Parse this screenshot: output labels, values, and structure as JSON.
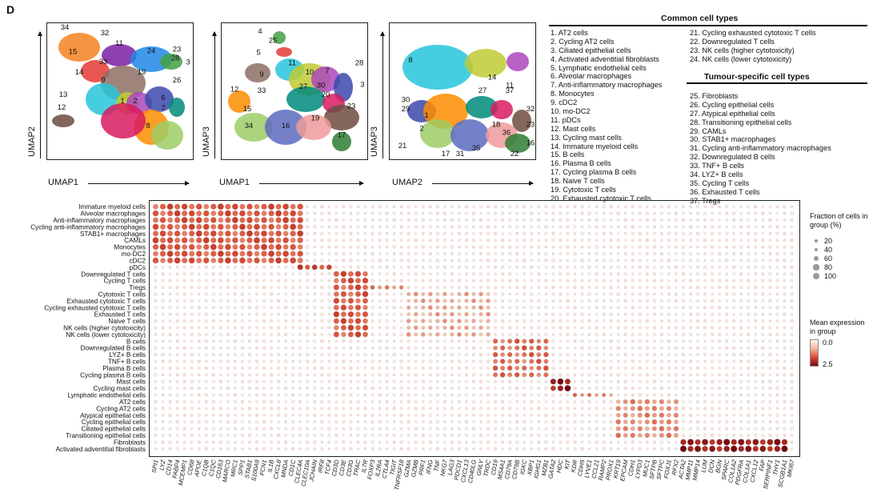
{
  "panel_label": "D",
  "umaps": [
    {
      "xlabel": "UMAP1",
      "ylabel": "UMAP2",
      "labels": [
        "34",
        "32",
        "15",
        "11",
        "33",
        "24",
        "23",
        "28",
        "3",
        "14",
        "19",
        "26",
        "9",
        "13",
        "12",
        "1",
        "2",
        "7",
        "6",
        "8"
      ]
    },
    {
      "xlabel": "UMAP1",
      "ylabel": "UMAP3",
      "labels": [
        "4",
        "25",
        "5",
        "9",
        "11",
        "10",
        "7",
        "28",
        "3",
        "12",
        "33",
        "27",
        "30",
        "20",
        "15",
        "34",
        "16",
        "19",
        "23",
        "17"
      ]
    },
    {
      "xlabel": "UMAP2",
      "ylabel": "UMAP3",
      "labels": [
        "8",
        "14",
        "11",
        "30",
        "29",
        "27",
        "37",
        "32",
        "1",
        "2",
        "23",
        "36",
        "21",
        "18",
        "16",
        "17",
        "31",
        "35",
        "22"
      ]
    }
  ],
  "legend": {
    "common_title": "Common cell types",
    "common_col1": [
      "1. AT2 cells",
      "2. Cycling AT2 cells",
      "3. Ciliated epithelial cells",
      "4. Activated adventitial fibroblasts",
      "5. Lymphatic endothelial cells",
      "6. Alveolar macrophages",
      "7. Anti-inflammatory macrophages",
      "8. Monocytes",
      "9. cDC2",
      "10. mo-DC2",
      "11. pDCs",
      "12. Mast cells",
      "13. Cycling mast cells",
      "14. Immature myeloid cells",
      "15. B cells",
      "16. Plasma B cells",
      "17. Cycling plasma B cells",
      "18. Naive T cells",
      "19. Cytotoxic T cells",
      "20. Exhausted cytotoxic T cells"
    ],
    "common_col2": [
      "21. Cycling exhausted cytotoxic T cells",
      "22. Downregulated T cells",
      "23. NK cells (higher cytotoxicity)",
      "24. NK cells (lower cytotoxicity)"
    ],
    "tumour_title": "Tumour-specific cell types",
    "tumour_col2": [
      "25. Fibroblasts",
      "26. Cycling epithelial cells",
      "27. Atypical epithelial cells",
      "28. Transitioning epithelial cells",
      "29. CAMLs",
      "30. STAB1+ macrophages",
      "31. Cycling anti-inflammatory macrophages",
      "32. Downregulated B cells",
      "33. TNF+ B cells",
      "34. LYZ+ B cells",
      "35. Cycling T cells",
      "36. Exhausted T cells",
      "37. Tregs"
    ]
  },
  "size_legend": {
    "title": "Fraction of cells in group (%)",
    "items": [
      "20",
      "40",
      "60",
      "80",
      "100"
    ]
  },
  "color_legend": {
    "title": "Mean expression in group",
    "ticks": [
      "0.0",
      "2.5"
    ]
  },
  "colors": {
    "low": "#fbe3d8",
    "mid": "#e9836b",
    "high": "#b2182b",
    "max": "#67000d",
    "frame": "#222222"
  },
  "chart_data": {
    "type": "dotplot",
    "rows": [
      "Immature myeloid cells",
      "Alveolar macrophages",
      "Anti-inflammatory macrophages",
      "Cycling anti-inflammatory macrophages",
      "STAB1+ macrophages",
      "CAMLs",
      "Monocytes",
      "mo-DC2",
      "cDC2",
      "pDCs",
      "Downregulated T cells",
      "Cycling T cells",
      "Tregs",
      "Cytotoxic T cells",
      "Exhausted cytotoxic T cells",
      "Cycling exhausted cytotoxic T cells",
      "Exhausted T cells",
      "Naive T cells",
      "NK cells (higher cytotoxicity)",
      "NK cells (lower cytotoxicity)",
      "B cells",
      "Downregulated B cells",
      "LYZ+ B cells",
      "TNF+ B cells",
      "Plasma B cells",
      "Cycling plasma B cells",
      "Mast cells",
      "Cycling mast cells",
      "Lymphatic endothelial cells",
      "AT2 cells",
      "Cycling AT2 cells",
      "Atypical epithelial cells",
      "Cycling epithelial cells",
      "Ciliated epithelial cells",
      "Transitioning epithelial cells",
      "Fibroblasts",
      "Activated adventitial fibroblasts"
    ],
    "genes": [
      "SPI1",
      "LYZ",
      "CD14",
      "FABP4",
      "MCEMP1",
      "CD68",
      "APOE",
      "C1QB",
      "C1QC",
      "CD163",
      "MARCO",
      "MRC1",
      "SPP1",
      "STAB1",
      "S100A9",
      "FCN1",
      "IL1B",
      "CXCL8",
      "MNDA",
      "CD1C",
      "CLEC4A",
      "CLEC10A",
      "JCHAIN",
      "IRF8",
      "TCF4",
      "CD3D",
      "CD3E",
      "CD3G",
      "TRAC",
      "IL7R",
      "FOXP3",
      "IL2RA",
      "CTLA4",
      "TIGIT",
      "TNFRSF18",
      "GZMA",
      "GZMB",
      "PRF1",
      "IFNG",
      "TNF",
      "NKG7",
      "LAG3",
      "PDCD1",
      "CXCL13",
      "CD40LG",
      "GNLY",
      "TRDC",
      "CD19",
      "MS4A1",
      "CD79A",
      "CD79B",
      "IGKC",
      "XBP1",
      "IGHG1",
      "MZB1",
      "GATA2",
      "HDC",
      "KIT",
      "KDR",
      "CDH5",
      "LYVE1",
      "CCL21",
      "RAMP2",
      "PROX1",
      "KRT19",
      "EPCAM",
      "CDH1",
      "LYPD3",
      "MUC1",
      "SFTPB",
      "SFTPC",
      "FOXJ1",
      "RFX2",
      "ACTA2",
      "MMP11",
      "MMP14",
      "LUM",
      "DCN",
      "BGN",
      "SPARC",
      "COL1A2",
      "PDGFRA",
      "COL1A1",
      "CXCL12",
      "FAP",
      "SERPINF1",
      "THY1",
      "SCGB1A1",
      "MKI67"
    ],
    "blocks": [
      {
        "rows": [
          0,
          8
        ],
        "genes": [
          0,
          20
        ],
        "level": 0.6,
        "frac": 0.8
      },
      {
        "rows": [
          9,
          9
        ],
        "genes": [
          20,
          24
        ],
        "level": 0.7,
        "frac": 0.7
      },
      {
        "rows": [
          10,
          19
        ],
        "genes": [
          25,
          29
        ],
        "level": 0.6,
        "frac": 0.75
      },
      {
        "rows": [
          12,
          12
        ],
        "genes": [
          30,
          34
        ],
        "level": 0.5,
        "frac": 0.5
      },
      {
        "rows": [
          13,
          19
        ],
        "genes": [
          35,
          46
        ],
        "level": 0.35,
        "frac": 0.45
      },
      {
        "rows": [
          20,
          25
        ],
        "genes": [
          47,
          54
        ],
        "level": 0.55,
        "frac": 0.6
      },
      {
        "rows": [
          26,
          27
        ],
        "genes": [
          55,
          57
        ],
        "level": 0.85,
        "frac": 0.8
      },
      {
        "rows": [
          28,
          28
        ],
        "genes": [
          58,
          63
        ],
        "level": 0.5,
        "frac": 0.4
      },
      {
        "rows": [
          29,
          34
        ],
        "genes": [
          64,
          72
        ],
        "level": 0.45,
        "frac": 0.6
      },
      {
        "rows": [
          35,
          36
        ],
        "genes": [
          73,
          87
        ],
        "level": 0.85,
        "frac": 0.85
      }
    ],
    "xlabel": "",
    "ylabel": ""
  }
}
